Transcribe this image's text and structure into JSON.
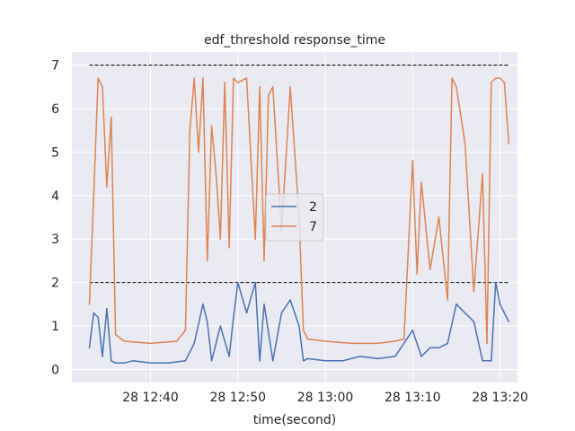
{
  "chart_data": {
    "type": "line",
    "title": "edf_threshold response_time",
    "xlabel": "time(second)",
    "ylabel": "",
    "xlim": [
      "2000-01-28T12:31:00",
      "2000-01-28T13:22:00"
    ],
    "ylim": [
      -0.3,
      7.3
    ],
    "grid": true,
    "background": "#eaeaf2",
    "x_ticks": [
      "2000-01-28T12:40:00",
      "2000-01-28T12:50:00",
      "2000-01-28T13:00:00",
      "2000-01-28T13:10:00",
      "2000-01-28T13:20:00"
    ],
    "x_tick_labels": [
      "28 12:40",
      "28 12:50",
      "28 13:00",
      "28 13:10",
      "28 13:20"
    ],
    "y_ticks": [
      0,
      1,
      2,
      3,
      4,
      5,
      6,
      7
    ],
    "y_tick_labels": [
      "0",
      "1",
      "2",
      "3",
      "4",
      "5",
      "6",
      "7"
    ],
    "legend": {
      "position": "center",
      "entries": [
        "2",
        "7"
      ]
    },
    "threshold_lines": [
      {
        "y": 7,
        "x": [
          "2000-01-28T12:33:00",
          "2000-01-28T13:21:00"
        ],
        "color": "#000000",
        "style": "dashed"
      },
      {
        "y": 2,
        "x": [
          "2000-01-28T12:33:00",
          "2000-01-28T13:21:00"
        ],
        "color": "#000000",
        "style": "dashed"
      }
    ],
    "series": [
      {
        "name": "2",
        "color": "#4c72b0",
        "x": [
          "2000-01-28T12:33:00",
          "2000-01-28T12:33:30",
          "2000-01-28T12:34:00",
          "2000-01-28T12:34:30",
          "2000-01-28T12:35:00",
          "2000-01-28T12:35:30",
          "2000-01-28T12:36:00",
          "2000-01-28T12:37:00",
          "2000-01-28T12:38:00",
          "2000-01-28T12:40:00",
          "2000-01-28T12:42:00",
          "2000-01-28T12:44:00",
          "2000-01-28T12:45:00",
          "2000-01-28T12:46:00",
          "2000-01-28T12:46:30",
          "2000-01-28T12:47:00",
          "2000-01-28T12:48:00",
          "2000-01-28T12:49:00",
          "2000-01-28T12:49:30",
          "2000-01-28T12:50:00",
          "2000-01-28T12:51:00",
          "2000-01-28T12:52:00",
          "2000-01-28T12:52:30",
          "2000-01-28T12:53:00",
          "2000-01-28T12:54:00",
          "2000-01-28T12:55:00",
          "2000-01-28T12:56:00",
          "2000-01-28T12:57:00",
          "2000-01-28T12:57:30",
          "2000-01-28T12:58:00",
          "2000-01-28T13:00:00",
          "2000-01-28T13:02:00",
          "2000-01-28T13:04:00",
          "2000-01-28T13:06:00",
          "2000-01-28T13:08:00",
          "2000-01-28T13:10:00",
          "2000-01-28T13:11:00",
          "2000-01-28T13:12:00",
          "2000-01-28T13:13:00",
          "2000-01-28T13:14:00",
          "2000-01-28T13:15:00",
          "2000-01-28T13:16:00",
          "2000-01-28T13:17:00",
          "2000-01-28T13:18:00",
          "2000-01-28T13:19:00",
          "2000-01-28T13:19:30",
          "2000-01-28T13:20:00",
          "2000-01-28T13:20:30",
          "2000-01-28T13:21:00"
        ],
        "values": [
          0.5,
          1.3,
          1.2,
          0.3,
          1.4,
          0.2,
          0.15,
          0.15,
          0.2,
          0.15,
          0.15,
          0.2,
          0.6,
          1.5,
          1.1,
          0.2,
          1.0,
          0.3,
          1.2,
          2.0,
          1.3,
          2.0,
          0.2,
          1.5,
          0.2,
          1.3,
          1.6,
          1.0,
          0.2,
          0.25,
          0.2,
          0.2,
          0.3,
          0.25,
          0.3,
          0.9,
          0.3,
          0.5,
          0.5,
          0.6,
          1.5,
          1.3,
          1.1,
          0.2,
          0.2,
          2.0,
          1.5,
          1.3,
          1.1
        ]
      },
      {
        "name": "7",
        "color": "#dd8452",
        "x": [
          "2000-01-28T12:33:00",
          "2000-01-28T12:33:30",
          "2000-01-28T12:34:00",
          "2000-01-28T12:34:30",
          "2000-01-28T12:35:00",
          "2000-01-28T12:35:30",
          "2000-01-28T12:36:00",
          "2000-01-28T12:37:00",
          "2000-01-28T12:40:00",
          "2000-01-28T12:43:00",
          "2000-01-28T12:44:00",
          "2000-01-28T12:44:30",
          "2000-01-28T12:45:00",
          "2000-01-28T12:45:30",
          "2000-01-28T12:46:00",
          "2000-01-28T12:46:30",
          "2000-01-28T12:47:00",
          "2000-01-28T12:47:30",
          "2000-01-28T12:48:00",
          "2000-01-28T12:48:30",
          "2000-01-28T12:49:00",
          "2000-01-28T12:49:30",
          "2000-01-28T12:50:00",
          "2000-01-28T12:51:00",
          "2000-01-28T12:52:00",
          "2000-01-28T12:52:30",
          "2000-01-28T12:53:00",
          "2000-01-28T12:53:30",
          "2000-01-28T12:54:00",
          "2000-01-28T12:55:00",
          "2000-01-28T12:56:00",
          "2000-01-28T12:57:00",
          "2000-01-28T12:57:30",
          "2000-01-28T12:58:00",
          "2000-01-28T13:00:00",
          "2000-01-28T13:03:00",
          "2000-01-28T13:06:00",
          "2000-01-28T13:08:00",
          "2000-01-28T13:09:00",
          "2000-01-28T13:10:00",
          "2000-01-28T13:10:30",
          "2000-01-28T13:11:00",
          "2000-01-28T13:12:00",
          "2000-01-28T13:13:00",
          "2000-01-28T13:14:00",
          "2000-01-28T13:14:30",
          "2000-01-28T13:15:00",
          "2000-01-28T13:16:00",
          "2000-01-28T13:17:00",
          "2000-01-28T13:18:00",
          "2000-01-28T13:18:30",
          "2000-01-28T13:19:00",
          "2000-01-28T13:19:30",
          "2000-01-28T13:20:00",
          "2000-01-28T13:20:30",
          "2000-01-28T13:21:00"
        ],
        "values": [
          1.5,
          4.0,
          6.7,
          6.5,
          4.2,
          5.8,
          0.8,
          0.65,
          0.6,
          0.65,
          0.9,
          5.5,
          6.7,
          5.0,
          6.7,
          2.5,
          5.6,
          4.5,
          3.0,
          6.6,
          2.8,
          6.7,
          6.6,
          6.7,
          3.0,
          6.5,
          2.5,
          6.3,
          6.5,
          3.2,
          6.5,
          3.5,
          0.9,
          0.7,
          0.65,
          0.6,
          0.6,
          0.65,
          0.7,
          4.8,
          2.2,
          4.3,
          2.3,
          3.5,
          1.6,
          6.7,
          6.5,
          5.2,
          1.8,
          4.5,
          0.6,
          6.6,
          6.7,
          6.7,
          6.6,
          5.2
        ]
      }
    ]
  }
}
